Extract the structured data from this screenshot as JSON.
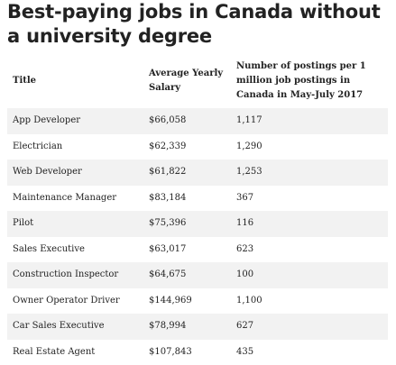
{
  "title": "Best-paying jobs in Canada without a university degree",
  "table": {
    "headers": [
      "Title",
      "Average Yearly Salary",
      "Number of postings per 1 million job postings in Canada in May-July 2017"
    ],
    "rows": [
      [
        "App Developer",
        "$66,058",
        "1,117"
      ],
      [
        "Electrician",
        "$62,339",
        "1,290"
      ],
      [
        "Web Developer",
        "$61,822",
        "1,253"
      ],
      [
        "Maintenance Manager",
        "$83,184",
        "367"
      ],
      [
        "Pilot",
        "$75,396",
        "116"
      ],
      [
        "Sales Executive",
        "$63,017",
        "623"
      ],
      [
        "Construction Inspector",
        "$64,675",
        "100"
      ],
      [
        "Owner Operator Driver",
        "$144,969",
        "1,100"
      ],
      [
        "Car Sales Executive",
        "$78,994",
        "627"
      ],
      [
        "Real Estate Agent",
        "$107,843",
        "435"
      ]
    ]
  }
}
